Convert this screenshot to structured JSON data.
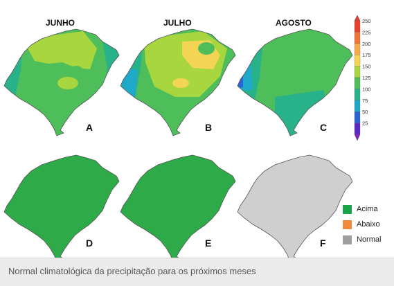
{
  "maps": {
    "titles": [
      "JUNHO",
      "JULHO",
      "AGOSTO"
    ],
    "panels": [
      {
        "letter": "A",
        "month": "JUNHO"
      },
      {
        "letter": "B",
        "month": "JULHO"
      },
      {
        "letter": "C",
        "month": "AGOSTO"
      },
      {
        "letter": "D",
        "category": "Acima"
      },
      {
        "letter": "E",
        "category": "Acima"
      },
      {
        "letter": "F",
        "category": "Normal"
      }
    ]
  },
  "colorbar": {
    "unit": "",
    "ticks": [
      "250",
      "225",
      "200",
      "175",
      "150",
      "125",
      "100",
      "75",
      "50",
      "25"
    ],
    "colors": [
      "#e8402d",
      "#f2733a",
      "#f7a84a",
      "#f4d553",
      "#a8d63f",
      "#4dbe5a",
      "#27b28a",
      "#1ea9c8",
      "#2a63d4",
      "#5b28c6",
      "#8d1fc2"
    ]
  },
  "category_legend": [
    {
      "label": "Acima",
      "color": "#1aa44a"
    },
    {
      "label": "Abaixo",
      "color": "#f08a3c"
    },
    {
      "label": "Normal",
      "color": "#9e9e9e"
    }
  ],
  "caption": "Normal climatológica da precipitação para os próximos meses"
}
